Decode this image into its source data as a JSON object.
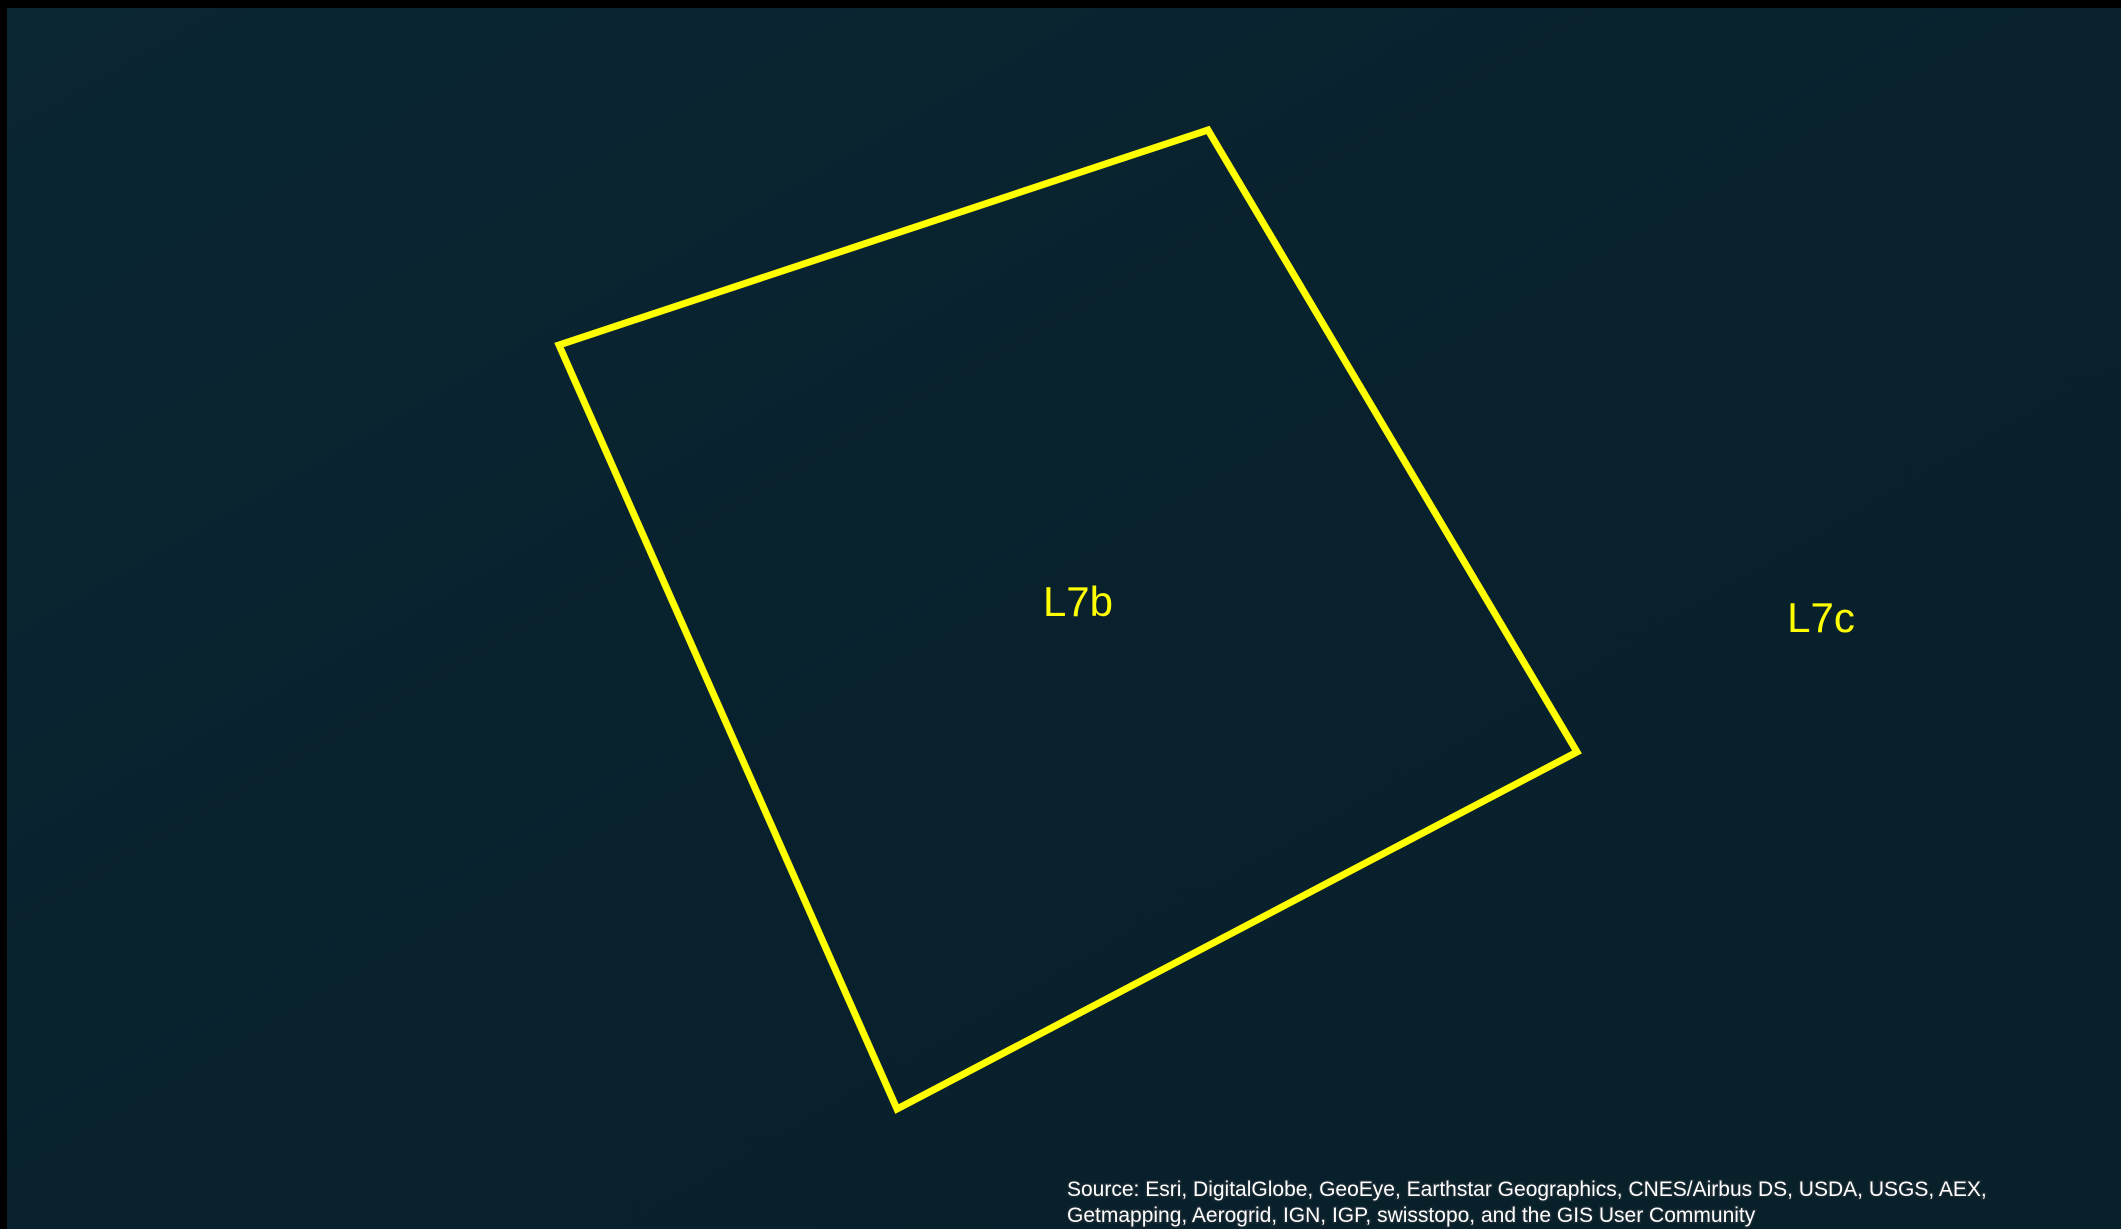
{
  "map": {
    "labels": [
      "L7b",
      "L7c"
    ],
    "attribution": [
      "Source: Esri, DigitalGlobe, GeoEye, Earthstar Geographics, CNES/Airbus DS, USDA, USGS, AEX,",
      "Getmapping, Aerogrid, IGN, IGP, swisstopo, and the GIS User Community"
    ]
  }
}
